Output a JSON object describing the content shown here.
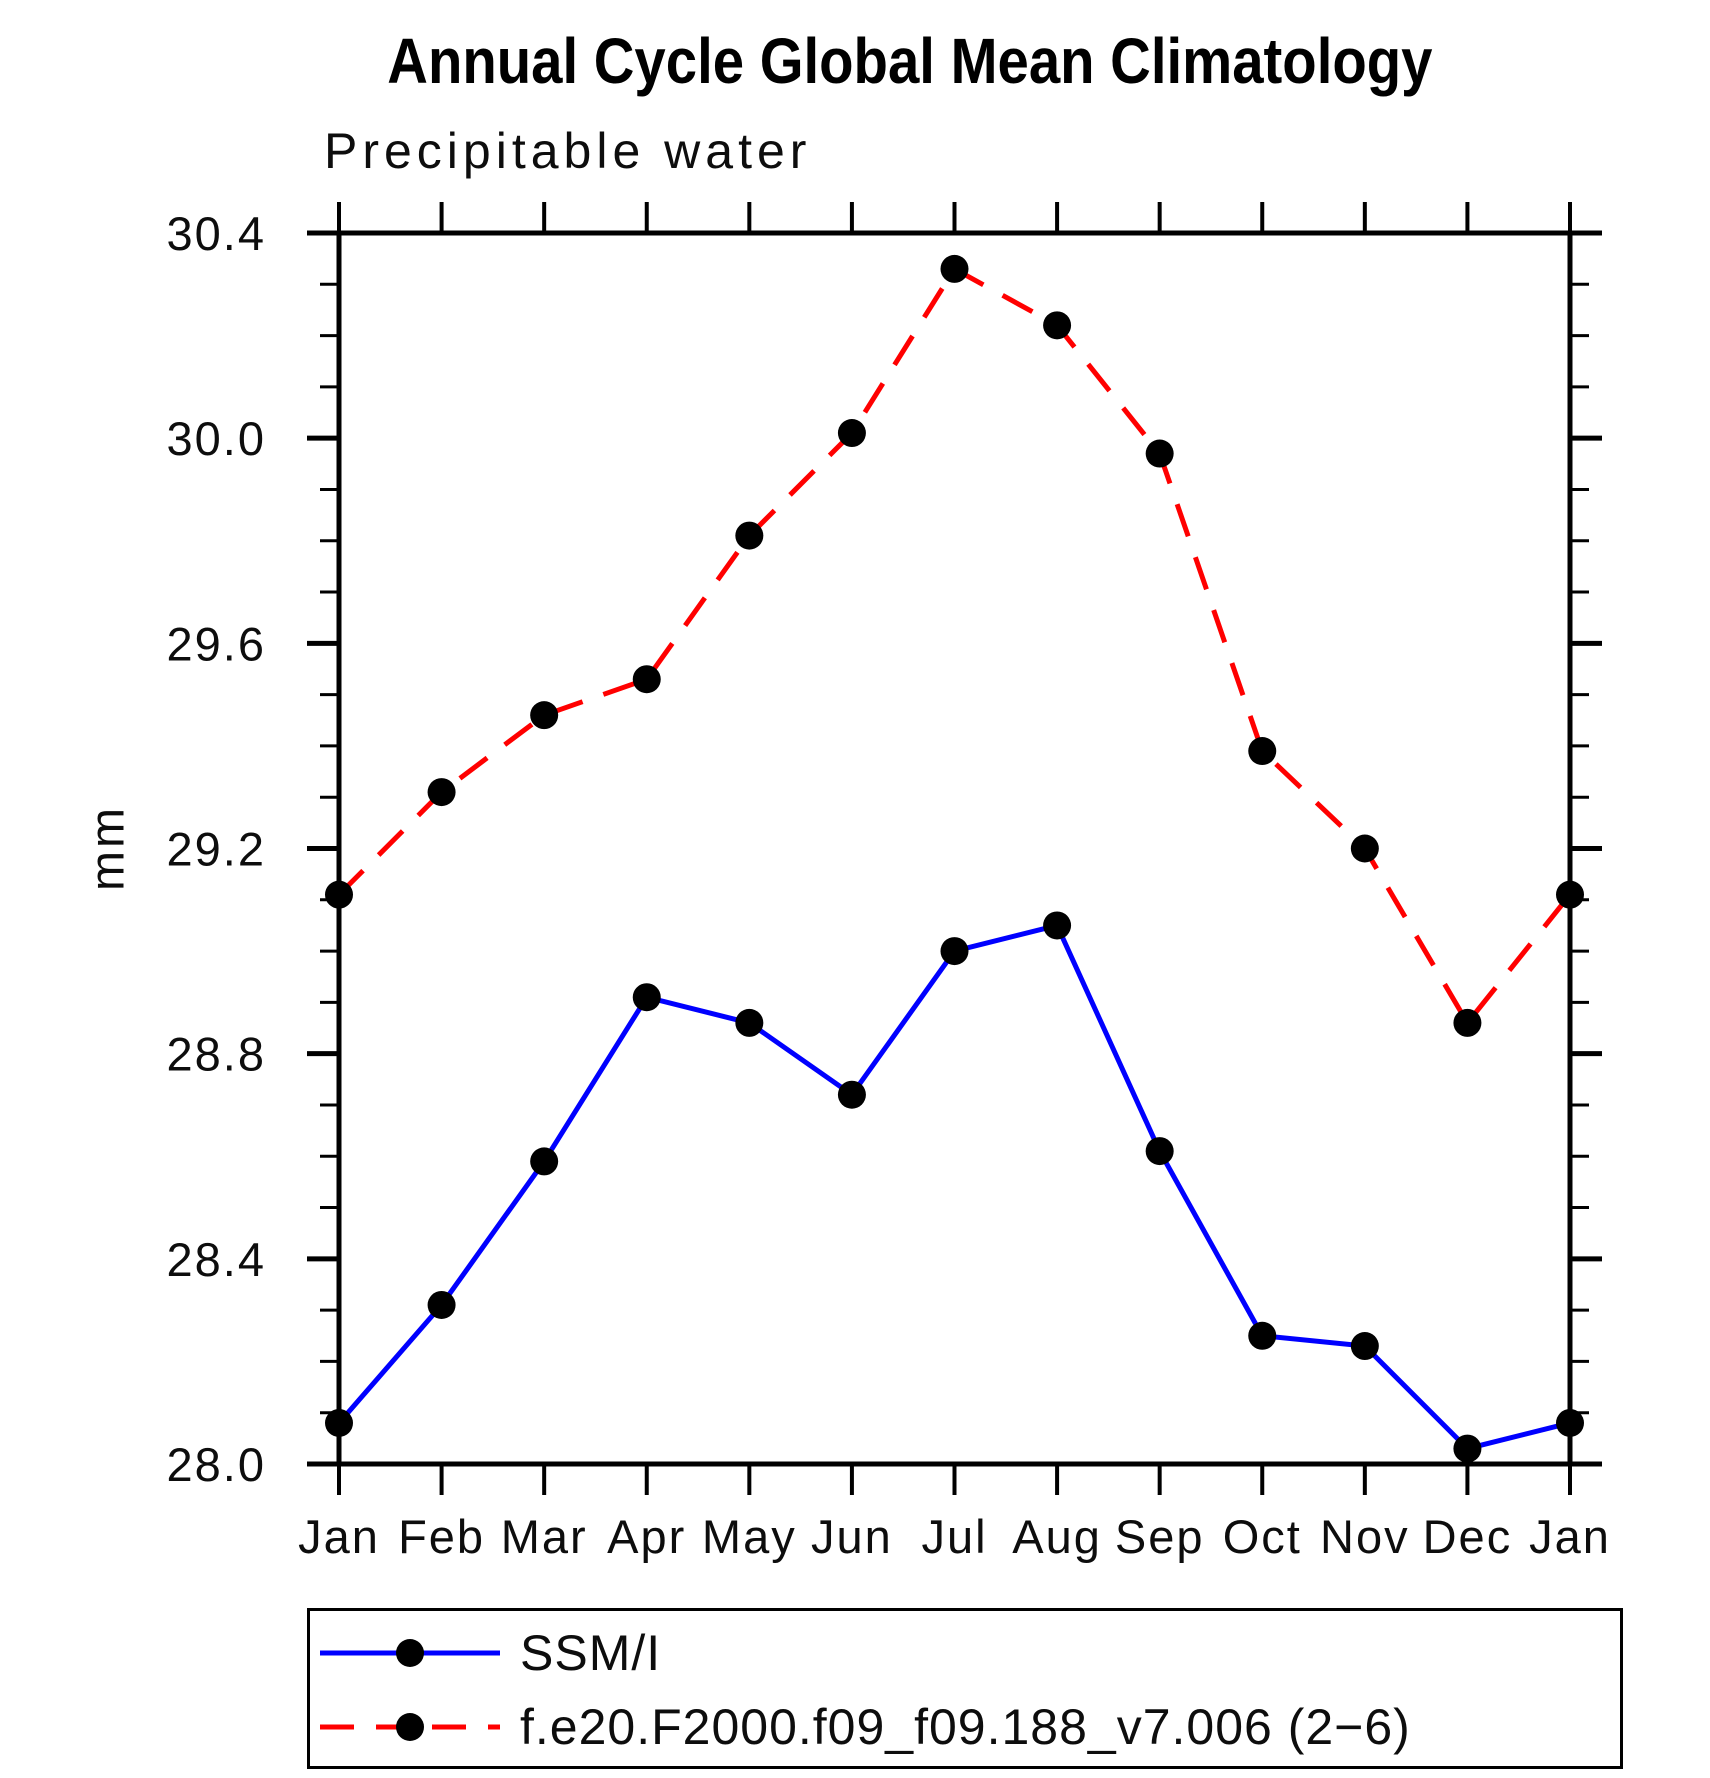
{
  "chart_data": {
    "type": "line",
    "title": "Annual Cycle Global Mean Climatology",
    "subtitle": "Precipitable water",
    "ylabel": "mm",
    "xlabel": "",
    "categories": [
      "Jan",
      "Feb",
      "Mar",
      "Apr",
      "May",
      "Jun",
      "Jul",
      "Aug",
      "Sep",
      "Oct",
      "Nov",
      "Dec",
      "Jan"
    ],
    "ylim": [
      28.0,
      30.4
    ],
    "y_major_ticks": [
      28.0,
      28.4,
      28.8,
      29.2,
      29.6,
      30.0,
      30.4
    ],
    "y_minor_step": 0.1,
    "grid": false,
    "legend_position": "bottom",
    "marker": "circle",
    "marker_color": "#000000",
    "series": [
      {
        "name": "SSM/I",
        "color": "#0000ff",
        "line_style": "solid",
        "values": [
          28.08,
          28.31,
          28.59,
          28.91,
          28.86,
          28.72,
          29.0,
          29.05,
          28.61,
          28.25,
          28.23,
          28.03,
          28.08
        ]
      },
      {
        "name": "f.e20.F2000.f09_f09.188_v7.006 (2−6)",
        "color": "#ff0000",
        "line_style": "dashed",
        "values": [
          29.11,
          29.31,
          29.46,
          29.53,
          29.81,
          30.01,
          30.33,
          30.22,
          29.97,
          29.39,
          29.2,
          28.86,
          29.11
        ]
      }
    ]
  }
}
